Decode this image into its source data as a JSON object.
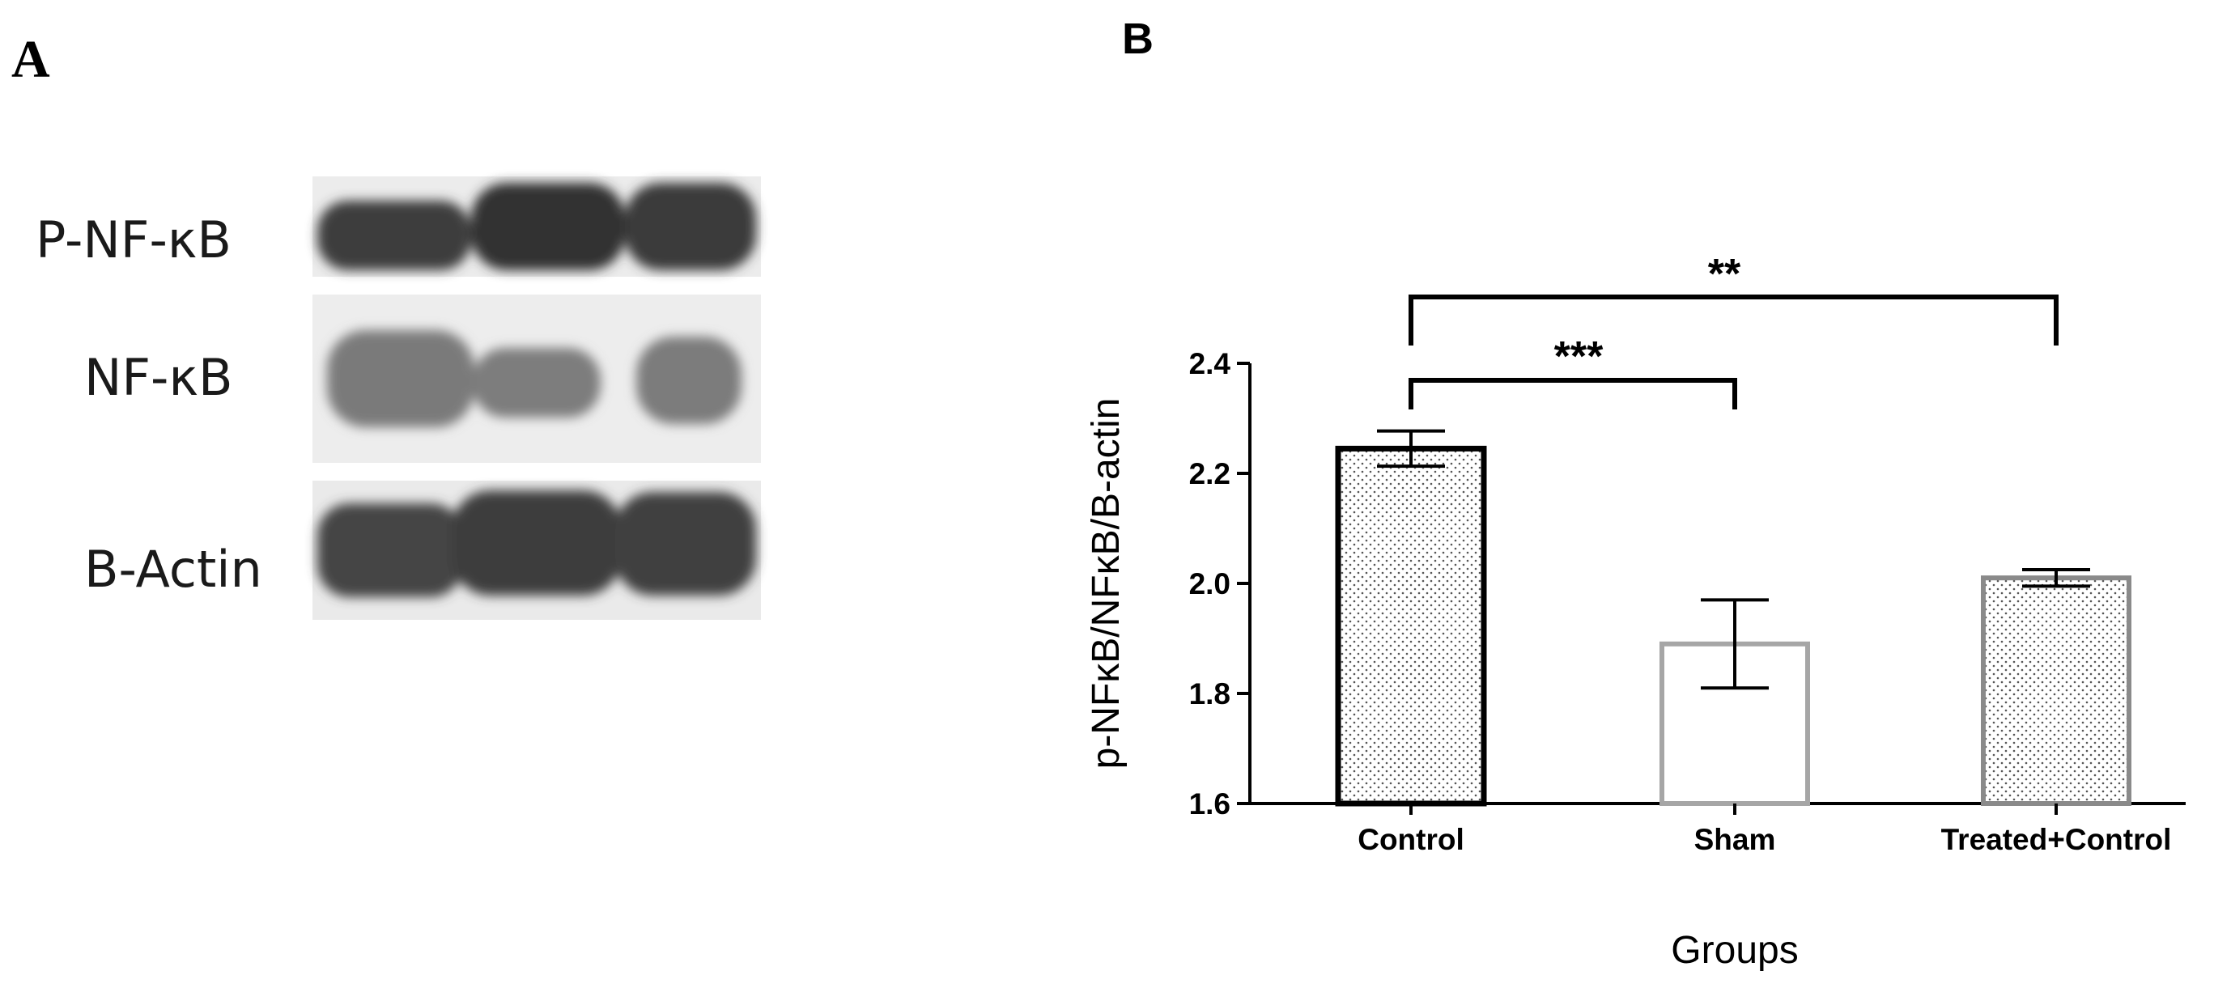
{
  "panel_a": {
    "letter": "A",
    "rows": [
      {
        "label": "P-NF-κB"
      },
      {
        "label": "NF-κB"
      },
      {
        "label": "B-Actin"
      }
    ]
  },
  "panel_b": {
    "letter": "B"
  },
  "colors": {
    "control_edge": "#000000",
    "sham_edge": "#a6a6a6",
    "treated_edge": "#8a8a8a",
    "dot_fill": "#555555",
    "blot_dark": "#3c3c3c",
    "blot_mid": "#7a7a7a"
  },
  "chart_data": {
    "type": "bar",
    "categories": [
      "Control",
      "Sham",
      "Treated+Control"
    ],
    "values": [
      2.245,
      1.89,
      2.01
    ],
    "errors": [
      0.032,
      0.08,
      0.015
    ],
    "ylabel": "p-NFκB/NFκB/B-actin",
    "xlabel": "Groups",
    "ylim": [
      1.6,
      2.4
    ],
    "yticks": [
      1.6,
      1.8,
      2.0,
      2.2,
      2.4
    ],
    "ytick_labels": [
      "1.6",
      "1.8",
      "2.0",
      "2.2",
      "2.4"
    ],
    "grid": false,
    "significance": [
      {
        "from": "Control",
        "to": "Sham",
        "label": "***"
      },
      {
        "from": "Control",
        "to": "Treated+Control",
        "label": "**"
      }
    ]
  }
}
